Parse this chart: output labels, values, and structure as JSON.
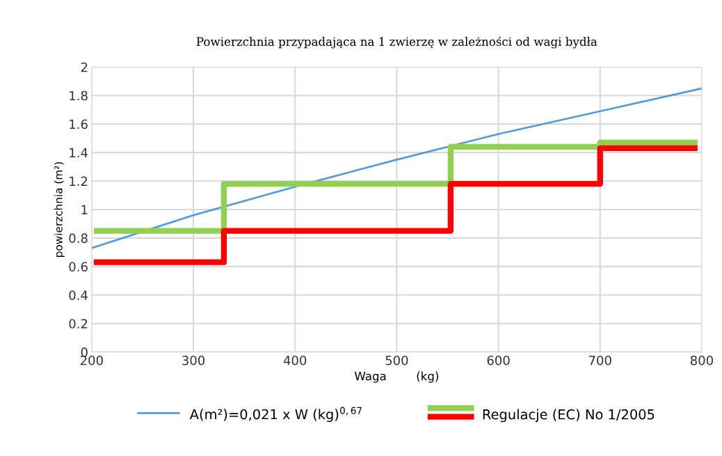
{
  "chart_data": {
    "type": "line",
    "title": "Powierzchnia przypadająca na 1 zwierzę w zależności od wagi bydła",
    "xlabel": "Waga        (kg)",
    "ylabel": "powierzchnia (m²)",
    "xlim": [
      200,
      800
    ],
    "xticks": [
      200,
      300,
      400,
      500,
      600,
      700,
      800
    ],
    "ylim": [
      0,
      2
    ],
    "yticks": [
      0,
      0.2,
      0.4,
      0.6,
      0.8,
      1,
      1.2,
      1.4,
      1.6,
      1.8,
      2
    ],
    "grid": true,
    "legend": "bottom",
    "series": [
      {
        "name": "A(m²)=0,021 x W (kg)$^{0,67}$",
        "color": "#5b9bd5",
        "x": [
          200,
          300,
          400,
          500,
          600,
          700,
          800
        ],
        "values": [
          0.73,
          0.96,
          1.16,
          1.35,
          1.53,
          1.69,
          1.85
        ]
      },
      {
        "name": "Regulacje (EC) No 1/2005",
        "color": "#92d050",
        "type": "step",
        "x": [
          205,
          330,
          553,
          700,
          793
        ],
        "values": [
          0.85,
          1.18,
          1.44,
          1.47,
          1.47
        ]
      },
      {
        "color": "#ff0000",
        "type": "step",
        "x": [
          205,
          330,
          553,
          700,
          793
        ],
        "values": [
          0.63,
          0.85,
          1.18,
          1.43,
          1.43
        ]
      }
    ]
  }
}
